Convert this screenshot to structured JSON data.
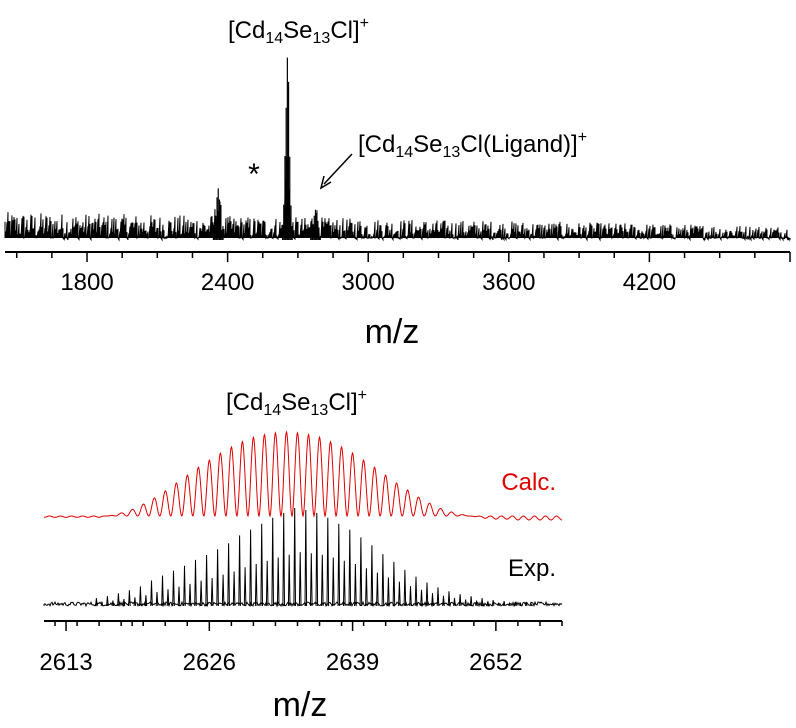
{
  "chart_data": [
    {
      "type": "line",
      "xlabel": "m/z",
      "xlim": [
        1450,
        4800
      ],
      "xticks": [
        1800,
        2400,
        3000,
        3600,
        4200
      ],
      "grid": false,
      "y_axis_shown": false,
      "series": [
        {
          "color": "#000000",
          "peaks": [
            {
              "x": 2360,
              "y": 0.28
            },
            {
              "x": 2655,
              "y": 1.0
            },
            {
              "x": 2775,
              "y": 0.18
            }
          ]
        }
      ],
      "annotations": [
        {
          "text": "[Cd14Se13Cl]+",
          "x": 2655
        },
        {
          "text": "[Cd14Se13Cl(Ligand)]+",
          "x": 2775,
          "arrow": true
        },
        {
          "text": "*",
          "x": 2360
        }
      ]
    },
    {
      "type": "line",
      "title": "[Cd14Se13Cl]+",
      "xlabel": "m/z",
      "xlim": [
        2611,
        2658
      ],
      "xticks": [
        2613,
        2626,
        2639,
        2652
      ],
      "grid": false,
      "y_axis_shown": false,
      "series": [
        {
          "name": "Calc.",
          "color": "#e00000",
          "x": [
            2616,
            2617,
            2618,
            2619,
            2620,
            2621,
            2622,
            2623,
            2624,
            2625,
            2626,
            2627,
            2628,
            2629,
            2630,
            2631,
            2632,
            2633,
            2634,
            2635,
            2636,
            2637,
            2638,
            2639,
            2640,
            2641,
            2642,
            2643,
            2644,
            2645,
            2646,
            2647,
            2648,
            2649,
            2650,
            2651,
            2652,
            2653,
            2654,
            2655
          ],
          "y": [
            0.03,
            0.05,
            0.08,
            0.12,
            0.18,
            0.25,
            0.33,
            0.42,
            0.51,
            0.6,
            0.68,
            0.76,
            0.83,
            0.89,
            0.94,
            0.97,
            0.99,
            1.0,
            0.99,
            0.97,
            0.94,
            0.89,
            0.83,
            0.76,
            0.68,
            0.6,
            0.51,
            0.42,
            0.34,
            0.26,
            0.19,
            0.13,
            0.09,
            0.06,
            0.04,
            0.02,
            0.01,
            0.01,
            0.0,
            0.0
          ]
        },
        {
          "name": "Exp.",
          "color": "#000000",
          "x": [
            2616,
            2617,
            2618,
            2619,
            2620,
            2621,
            2622,
            2623,
            2624,
            2625,
            2626,
            2627,
            2628,
            2629,
            2630,
            2631,
            2632,
            2633,
            2634,
            2635,
            2636,
            2637,
            2638,
            2639,
            2640,
            2641,
            2642,
            2643,
            2644,
            2645,
            2646,
            2647,
            2648,
            2649,
            2650,
            2651,
            2652,
            2653,
            2654,
            2655
          ],
          "y": [
            0.08,
            0.1,
            0.13,
            0.16,
            0.2,
            0.26,
            0.31,
            0.36,
            0.41,
            0.47,
            0.52,
            0.58,
            0.64,
            0.72,
            0.78,
            0.84,
            0.9,
            0.95,
            1.0,
            0.98,
            0.95,
            0.9,
            0.84,
            0.78,
            0.7,
            0.62,
            0.53,
            0.45,
            0.37,
            0.3,
            0.24,
            0.19,
            0.15,
            0.12,
            0.1,
            0.08,
            0.06,
            0.05,
            0.04,
            0.03
          ]
        }
      ]
    }
  ]
}
